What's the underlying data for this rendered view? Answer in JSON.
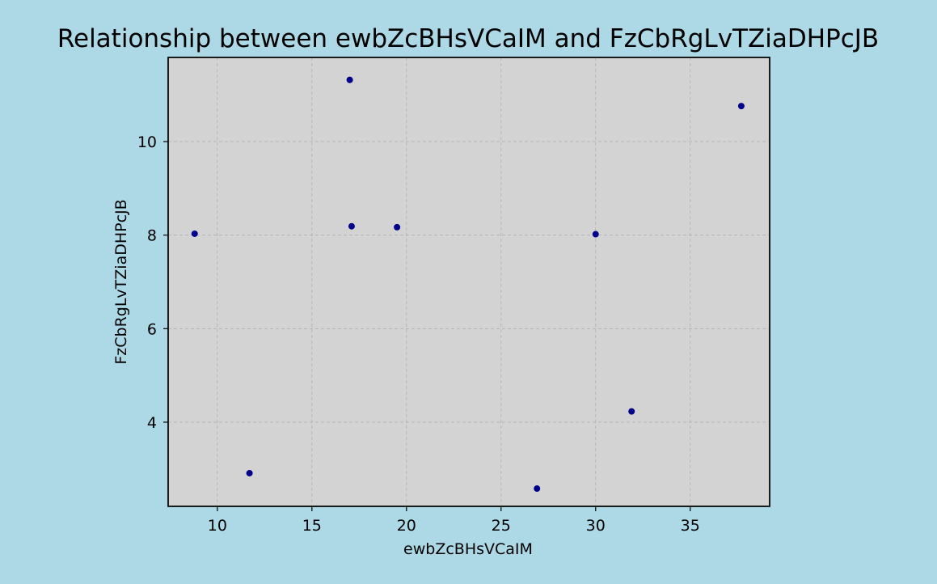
{
  "chart_data": {
    "type": "scatter",
    "title": "Relationship between ewbZcBHsVCaIM and FzCbRgLvTZiaDHPcJB",
    "xlabel": "ewbZcBHsVCaIM",
    "ylabel": "FzCbRgLvTZiaDHPcJB",
    "xlim": [
      7.4,
      39.2
    ],
    "ylim": [
      2.2,
      11.8
    ],
    "xticks": [
      10,
      15,
      20,
      25,
      30,
      35
    ],
    "yticks": [
      4,
      6,
      8,
      10
    ],
    "grid": true,
    "point_color": "#00008b",
    "plot_background": "#d3d3d3",
    "figure_background": "#add8e6",
    "points": [
      {
        "x": 8.8,
        "y": 8.03
      },
      {
        "x": 11.7,
        "y": 2.91
      },
      {
        "x": 17.0,
        "y": 11.32
      },
      {
        "x": 17.1,
        "y": 8.19
      },
      {
        "x": 19.5,
        "y": 8.17
      },
      {
        "x": 26.9,
        "y": 2.58
      },
      {
        "x": 30.0,
        "y": 8.02
      },
      {
        "x": 31.9,
        "y": 4.23
      },
      {
        "x": 37.7,
        "y": 10.76
      }
    ]
  }
}
